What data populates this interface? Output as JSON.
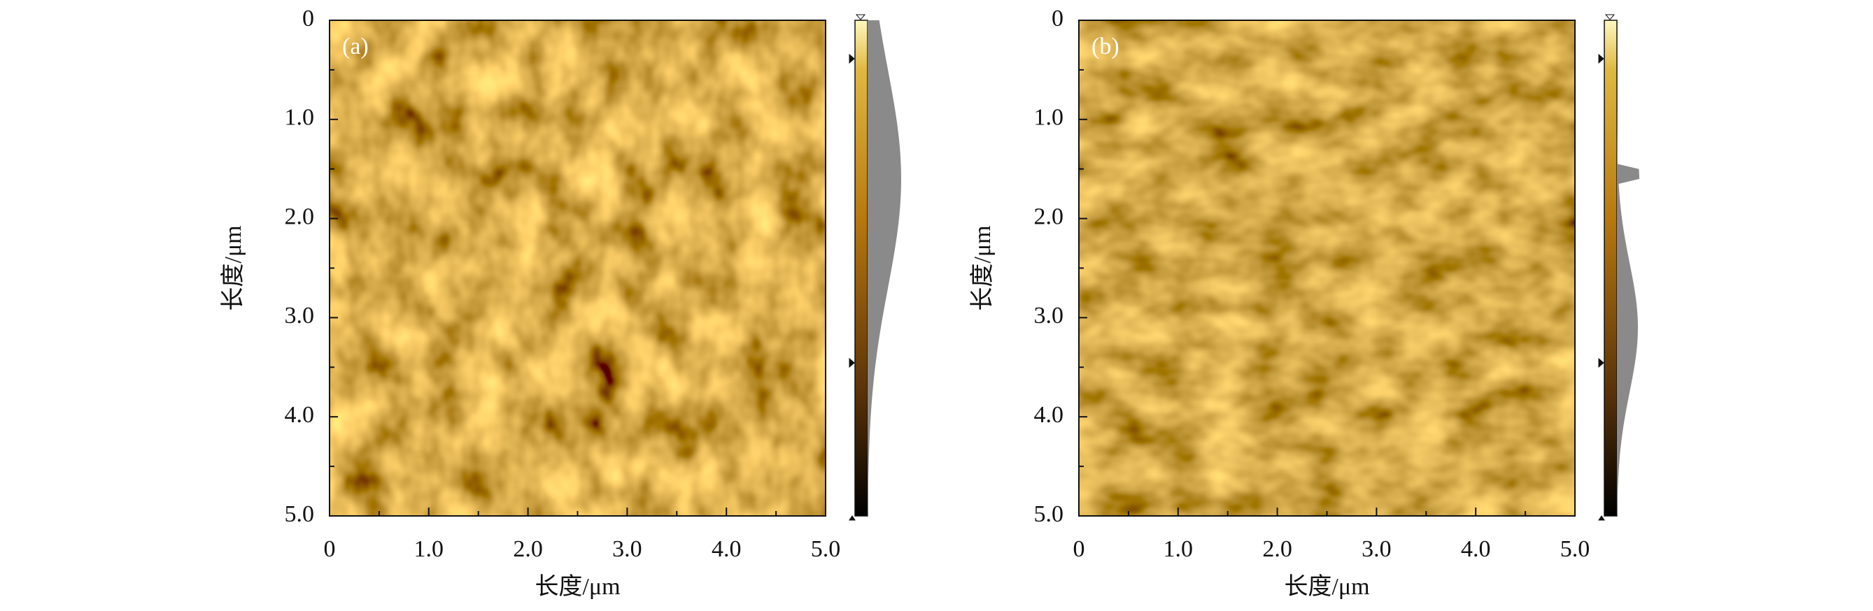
{
  "chart_data": [
    {
      "type": "image",
      "panel_label": "(a)",
      "xlabel": "长度/μm",
      "ylabel": "长度/μm",
      "xlim": [
        0,
        5
      ],
      "ylim": [
        0,
        5
      ],
      "yaxis_inverted": true,
      "xticks": [
        0,
        {
          "value": 1,
          "label": "1.0"
        },
        {
          "value": 2,
          "label": "2.0"
        },
        {
          "value": 3,
          "label": "3.0"
        },
        {
          "value": 4,
          "label": "4.0"
        },
        {
          "value": 5,
          "label": "5.0"
        }
      ],
      "yticks": [
        0,
        {
          "value": 1,
          "label": "1.0"
        },
        {
          "value": 2,
          "label": "2.0"
        },
        {
          "value": 3,
          "label": "3.0"
        },
        {
          "value": 4,
          "label": "4.0"
        },
        {
          "value": 5,
          "label": "5.0"
        }
      ],
      "minor_ticks": [
        0.5,
        1.5,
        2.5,
        3.5,
        4.5
      ]
    },
    {
      "type": "image",
      "panel_label": "(b)",
      "xlabel": "长度/μm",
      "ylabel": "长度/μm",
      "xlim": [
        0,
        5
      ],
      "ylim": [
        0,
        5
      ],
      "yaxis_inverted": true,
      "xticks": [
        0,
        {
          "value": 1,
          "label": "1.0"
        },
        {
          "value": 2,
          "label": "2.0"
        },
        {
          "value": 3,
          "label": "3.0"
        },
        {
          "value": 4,
          "label": "4.0"
        },
        {
          "value": 5,
          "label": "5.0"
        }
      ],
      "yticks": [
        0,
        {
          "value": 1,
          "label": "1.0"
        },
        {
          "value": 2,
          "label": "2.0"
        },
        {
          "value": 3,
          "label": "3.0"
        },
        {
          "value": 4,
          "label": "4.0"
        },
        {
          "value": 5,
          "label": "5.0"
        }
      ],
      "minor_ticks": [
        0.5,
        1.5,
        2.5,
        3.5,
        4.5
      ]
    }
  ]
}
